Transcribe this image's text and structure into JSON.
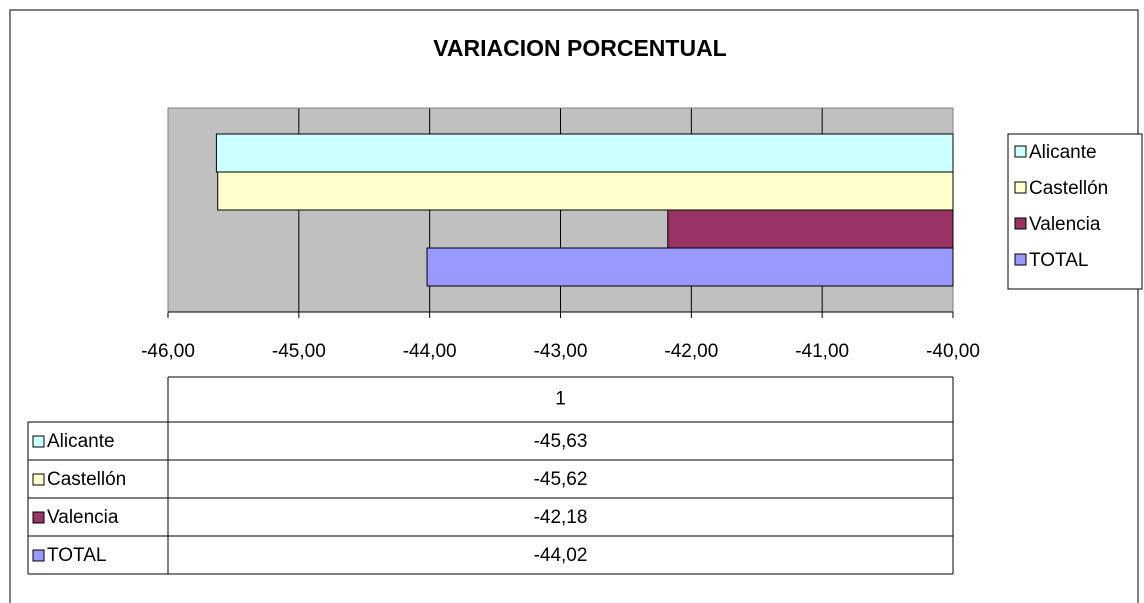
{
  "chart_data": {
    "type": "bar",
    "orientation": "horizontal",
    "title": "VARIACION PORCENTUAL",
    "categories": [
      "1"
    ],
    "series": [
      {
        "name": "Alicante",
        "color": "#ccffff",
        "values": [
          -45.63
        ],
        "value_labels": [
          "-45,63"
        ]
      },
      {
        "name": "Castellón",
        "color": "#ffffcc",
        "values": [
          -45.62
        ],
        "value_labels": [
          "-45,62"
        ]
      },
      {
        "name": "Valencia",
        "color": "#993366",
        "values": [
          -42.18
        ],
        "value_labels": [
          "-42,18"
        ]
      },
      {
        "name": "TOTAL",
        "color": "#9999ff",
        "values": [
          -44.02
        ],
        "value_labels": [
          "-44,02"
        ]
      }
    ],
    "xlim": [
      -46,
      -40
    ],
    "xticks": [
      {
        "value": -46,
        "label": "-46,00"
      },
      {
        "value": -45,
        "label": "-45,00"
      },
      {
        "value": -44,
        "label": "-44,00"
      },
      {
        "value": -43,
        "label": "-43,00"
      },
      {
        "value": -42,
        "label": "-42,00"
      },
      {
        "value": -41,
        "label": "-41,00"
      },
      {
        "value": -40,
        "label": "-40,00"
      }
    ],
    "grid": true,
    "legend": "right",
    "data_table": true
  }
}
